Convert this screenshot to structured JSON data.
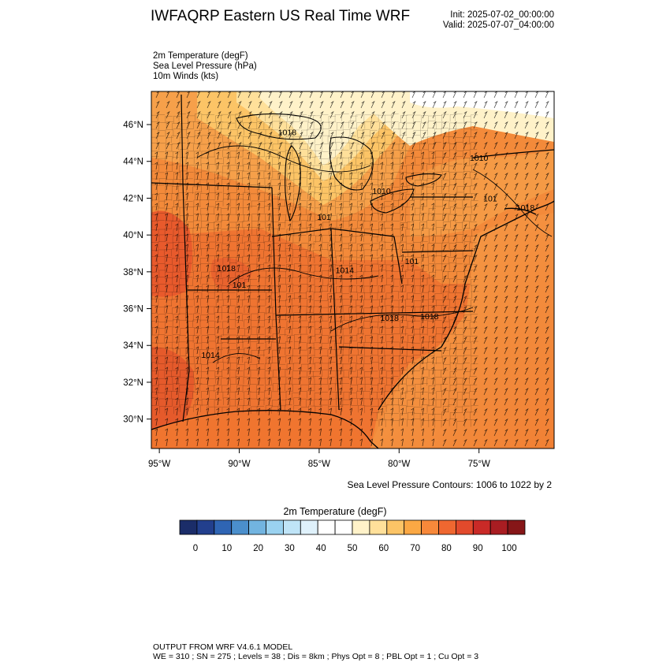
{
  "header": {
    "title": "IWFAQRP Eastern US Real Time WRF",
    "init": "Init: 2025-07-02_00:00:00",
    "valid": "Valid: 2025-07-07_04:00:00"
  },
  "fields": [
    "2m Temperature   (degF)",
    "Sea Level Pressure   (hPa)",
    "10m Winds   (kts)"
  ],
  "map": {
    "lat_ticks": [
      {
        "value": 30,
        "label": "30°N"
      },
      {
        "value": 32,
        "label": "32°N"
      },
      {
        "value": 34,
        "label": "34°N"
      },
      {
        "value": 36,
        "label": "36°N"
      },
      {
        "value": 38,
        "label": "38°N"
      },
      {
        "value": 40,
        "label": "40°N"
      },
      {
        "value": 42,
        "label": "42°N"
      },
      {
        "value": 44,
        "label": "44°N"
      },
      {
        "value": 46,
        "label": "46°N"
      }
    ],
    "lon_ticks": [
      {
        "value": -95,
        "label": "95°W"
      },
      {
        "value": -90,
        "label": "90°W"
      },
      {
        "value": -85,
        "label": "85°W"
      },
      {
        "value": -80,
        "label": "80°W"
      },
      {
        "value": -75,
        "label": "75°W"
      }
    ],
    "lat_range": [
      28.4,
      47.8
    ],
    "lon_range": [
      -95.5,
      -70.3
    ],
    "pressure_labels": [
      {
        "text": "1018",
        "lat": 45.6,
        "lon": -87.0
      },
      {
        "text": "1010",
        "lat": 44.2,
        "lon": -75.0
      },
      {
        "text": "1010",
        "lat": 42.4,
        "lon": -81.1
      },
      {
        "text": "101",
        "lat": 42.0,
        "lon": -74.3
      },
      {
        "text": "1018",
        "lat": 41.5,
        "lon": -72.1
      },
      {
        "text": "101",
        "lat": 41.0,
        "lon": -84.7
      },
      {
        "text": "101",
        "lat": 38.6,
        "lon": -79.2
      },
      {
        "text": "1014",
        "lat": 38.1,
        "lon": -83.4
      },
      {
        "text": "1018",
        "lat": 38.2,
        "lon": -90.8
      },
      {
        "text": "101",
        "lat": 37.3,
        "lon": -90.0
      },
      {
        "text": "1018",
        "lat": 35.5,
        "lon": -80.6
      },
      {
        "text": "1018",
        "lat": 35.6,
        "lon": -78.1
      },
      {
        "text": "1014",
        "lat": 33.5,
        "lon": -91.8
      }
    ],
    "contour_note": "Sea Level Pressure Contours: 1006 to 1022 by 2"
  },
  "colorbar": {
    "title": "2m Temperature  (degF)",
    "colors": [
      "#1b2d69",
      "#223f8d",
      "#2f65b4",
      "#4b8fcc",
      "#72b4e0",
      "#9ad2f0",
      "#bfe4f7",
      "#dff1fb",
      "#ffffff",
      "#ffffff",
      "#fff2c9",
      "#ffe09a",
      "#fcc466",
      "#fba844",
      "#f7883a",
      "#ef6730",
      "#e24a2c",
      "#c92a27",
      "#a91d22",
      "#861618"
    ],
    "tick_labels": [
      "0",
      "10",
      "20",
      "30",
      "40",
      "50",
      "60",
      "70",
      "80",
      "90",
      "100"
    ]
  },
  "footer": {
    "line1": "OUTPUT FROM WRF V4.6.1 MODEL",
    "line2": "WE = 310 ; SN = 275 ; Levels = 38 ; Dis = 8km ; Phys Opt = 8 ; PBL Opt = 1 ; Cu Opt = 3"
  }
}
